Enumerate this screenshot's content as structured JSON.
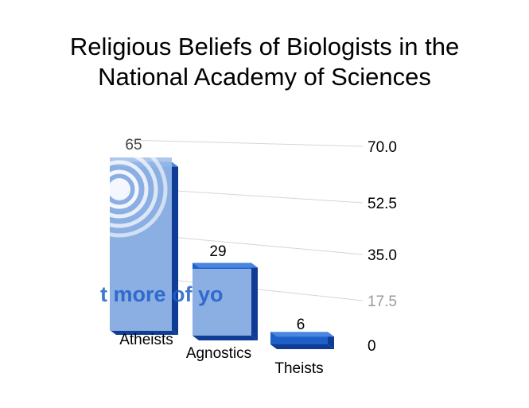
{
  "title": {
    "line1": "Religious Beliefs of Biologists in the",
    "line2": "National Academy of Sciences"
  },
  "chart_data": {
    "type": "bar",
    "title": "Religious Beliefs of Biologists in the National Academy of Sciences",
    "categories": [
      "Atheists",
      "Agnostics",
      "Theists"
    ],
    "values": [
      65,
      29,
      6
    ],
    "data_labels": [
      "65",
      "29",
      "6"
    ],
    "y_ticks": [
      "70.0",
      "52.5",
      "35.0",
      "17.5",
      "0"
    ],
    "ylim": [
      0,
      70
    ],
    "grid": true,
    "axis_position": "right",
    "bar_color": "#1f5fc8",
    "bar_side_color": "#0f3c94",
    "bar_top_color": "#4a86e0",
    "overlay_text": "t more of yo",
    "overlay_color": "#9fbde8"
  }
}
